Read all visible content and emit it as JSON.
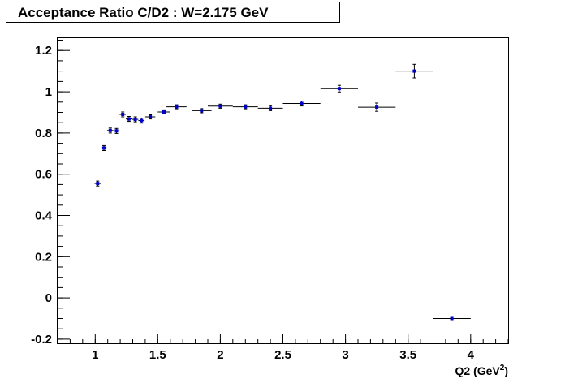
{
  "chart_data": {
    "type": "scatter",
    "title": "Acceptance Ratio C/D2 : W=2.175 GeV",
    "xlabel": "Q2 (GeV",
    "xlabel_sup": "2",
    "xlabel_close": ")",
    "ylabel": "",
    "xlim": [
      0.7,
      4.3
    ],
    "ylim": [
      -0.22,
      1.26
    ],
    "x_ticks": [
      1,
      1.5,
      2,
      2.5,
      3,
      3.5,
      4
    ],
    "x_tick_labels": [
      "1",
      "1.5",
      "2",
      "2.5",
      "3",
      "3.5",
      "4"
    ],
    "y_ticks": [
      -0.2,
      0,
      0.2,
      0.4,
      0.6,
      0.8,
      1,
      1.2
    ],
    "y_tick_labels": [
      "-0.2",
      "0",
      "0.2",
      "0.4",
      "0.6",
      "0.8",
      "1",
      "1.2"
    ],
    "grid": false,
    "marker_color": "#0000cc",
    "series": [
      {
        "points": [
          {
            "x": 1.02,
            "y": 0.555,
            "xerr": 0.025,
            "yerr": 0.012
          },
          {
            "x": 1.07,
            "y": 0.727,
            "xerr": 0.025,
            "yerr": 0.012
          },
          {
            "x": 1.12,
            "y": 0.812,
            "xerr": 0.025,
            "yerr": 0.012
          },
          {
            "x": 1.17,
            "y": 0.81,
            "xerr": 0.025,
            "yerr": 0.012
          },
          {
            "x": 1.22,
            "y": 0.89,
            "xerr": 0.025,
            "yerr": 0.012
          },
          {
            "x": 1.27,
            "y": 0.868,
            "xerr": 0.025,
            "yerr": 0.012
          },
          {
            "x": 1.32,
            "y": 0.866,
            "xerr": 0.025,
            "yerr": 0.012
          },
          {
            "x": 1.37,
            "y": 0.86,
            "xerr": 0.025,
            "yerr": 0.012
          },
          {
            "x": 1.44,
            "y": 0.878,
            "xerr": 0.04,
            "yerr": 0.01
          },
          {
            "x": 1.55,
            "y": 0.902,
            "xerr": 0.05,
            "yerr": 0.01
          },
          {
            "x": 1.65,
            "y": 0.927,
            "xerr": 0.08,
            "yerr": 0.01
          },
          {
            "x": 1.85,
            "y": 0.908,
            "xerr": 0.08,
            "yerr": 0.01
          },
          {
            "x": 2.0,
            "y": 0.93,
            "xerr": 0.1,
            "yerr": 0.01
          },
          {
            "x": 2.2,
            "y": 0.927,
            "xerr": 0.1,
            "yerr": 0.01
          },
          {
            "x": 2.4,
            "y": 0.92,
            "xerr": 0.1,
            "yerr": 0.012
          },
          {
            "x": 2.65,
            "y": 0.943,
            "xerr": 0.15,
            "yerr": 0.012
          },
          {
            "x": 2.95,
            "y": 1.015,
            "xerr": 0.15,
            "yerr": 0.016
          },
          {
            "x": 3.25,
            "y": 0.925,
            "xerr": 0.15,
            "yerr": 0.02
          },
          {
            "x": 3.55,
            "y": 1.1,
            "xerr": 0.15,
            "yerr": 0.033
          },
          {
            "x": 3.85,
            "y": -0.1,
            "xerr": 0.15,
            "yerr": 0.002
          }
        ]
      }
    ]
  }
}
